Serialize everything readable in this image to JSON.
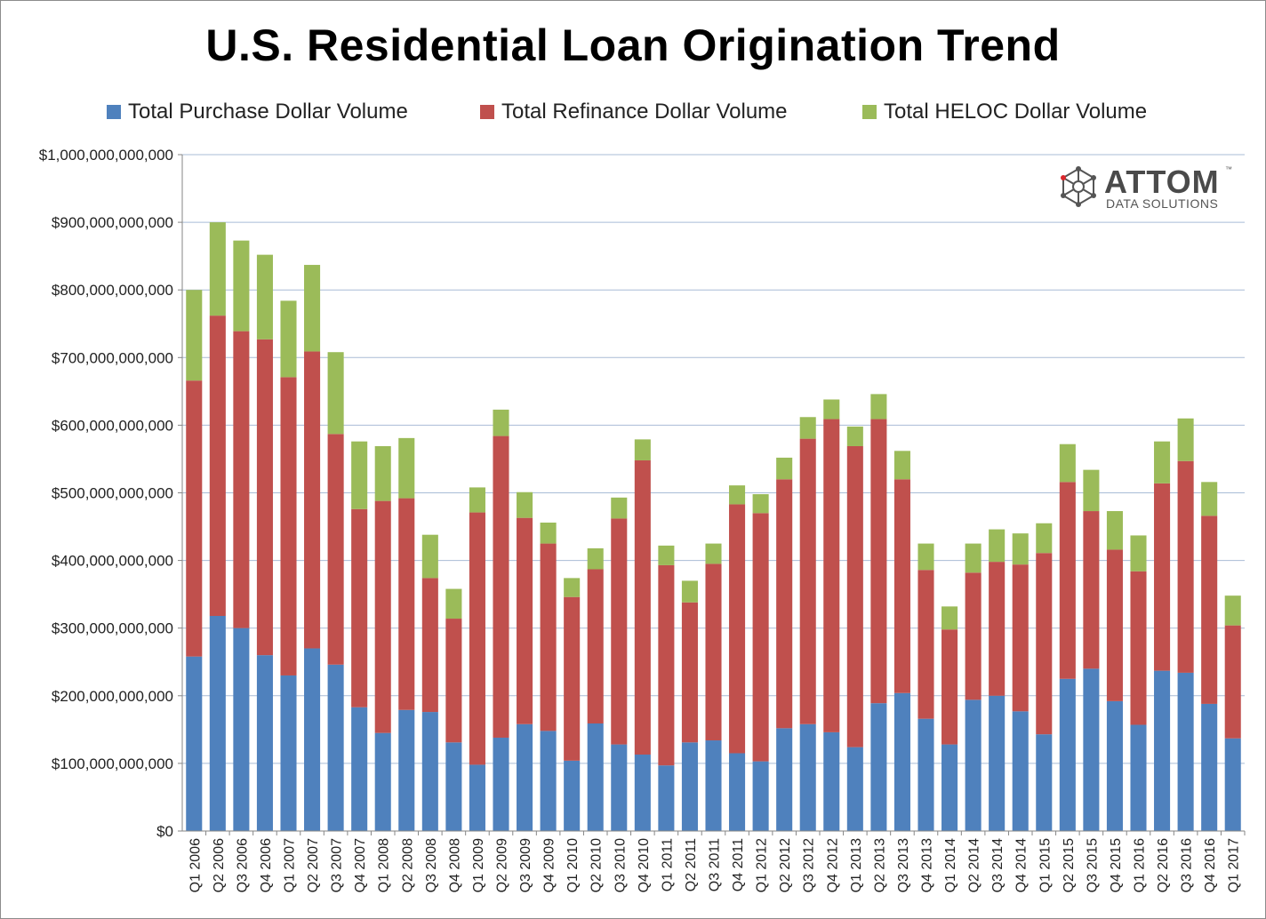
{
  "chart_data": {
    "type": "bar",
    "stacked": true,
    "title": "U.S. Residential Loan Origination Trend",
    "xlabel": "",
    "ylabel": "",
    "ylim": [
      0,
      1000000000000
    ],
    "yticks": [
      0,
      100000000000,
      200000000000,
      300000000000,
      400000000000,
      500000000000,
      600000000000,
      700000000000,
      800000000000,
      900000000000,
      1000000000000
    ],
    "ytick_labels": [
      "$0",
      "$100,000,000,000",
      "$200,000,000,000",
      "$300,000,000,000",
      "$400,000,000,000",
      "$500,000,000,000",
      "$600,000,000,000",
      "$700,000,000,000",
      "$800,000,000,000",
      "$900,000,000,000",
      "$1,000,000,000,000"
    ],
    "grid": true,
    "legend_position": "top",
    "categories": [
      "Q1 2006",
      "Q2 2006",
      "Q3 2006",
      "Q4 2006",
      "Q1 2007",
      "Q2 2007",
      "Q3 2007",
      "Q4 2007",
      "Q1 2008",
      "Q2 2008",
      "Q3 2008",
      "Q4 2008",
      "Q1 2009",
      "Q2 2009",
      "Q3 2009",
      "Q4 2009",
      "Q1 2010",
      "Q2 2010",
      "Q3 2010",
      "Q4 2010",
      "Q1 2011",
      "Q2 2011",
      "Q3 2011",
      "Q4 2011",
      "Q1 2012",
      "Q2 2012",
      "Q3 2012",
      "Q4 2012",
      "Q1 2013",
      "Q2 2013",
      "Q3 2013",
      "Q4 2013",
      "Q1 2014",
      "Q2 2014",
      "Q3 2014",
      "Q4 2014",
      "Q1 2015",
      "Q2 2015",
      "Q3 2015",
      "Q4 2015",
      "Q1 2016",
      "Q2 2016",
      "Q3 2016",
      "Q4 2016",
      "Q1 2017"
    ],
    "series": [
      {
        "name": "Total Purchase Dollar Volume",
        "color": "#4f81bd",
        "values": [
          258000000000,
          318000000000,
          300000000000,
          260000000000,
          230000000000,
          270000000000,
          246000000000,
          183000000000,
          145000000000,
          179000000000,
          176000000000,
          131000000000,
          98000000000,
          138000000000,
          158000000000,
          148000000000,
          104000000000,
          159000000000,
          128000000000,
          113000000000,
          97000000000,
          131000000000,
          134000000000,
          115000000000,
          103000000000,
          152000000000,
          158000000000,
          146000000000,
          124000000000,
          189000000000,
          204000000000,
          166000000000,
          128000000000,
          194000000000,
          200000000000,
          177000000000,
          143000000000,
          225000000000,
          240000000000,
          192000000000,
          157000000000,
          237000000000,
          234000000000,
          188000000000,
          137000000000
        ]
      },
      {
        "name": "Total Refinance Dollar Volume",
        "color": "#c0504d",
        "values": [
          408000000000,
          444000000000,
          439000000000,
          467000000000,
          441000000000,
          439000000000,
          341000000000,
          293000000000,
          343000000000,
          313000000000,
          198000000000,
          183000000000,
          373000000000,
          446000000000,
          305000000000,
          277000000000,
          242000000000,
          228000000000,
          334000000000,
          435000000000,
          296000000000,
          207000000000,
          261000000000,
          368000000000,
          367000000000,
          368000000000,
          422000000000,
          463000000000,
          445000000000,
          420000000000,
          316000000000,
          220000000000,
          170000000000,
          188000000000,
          198000000000,
          217000000000,
          268000000000,
          291000000000,
          233000000000,
          224000000000,
          227000000000,
          277000000000,
          313000000000,
          278000000000,
          167000000000
        ]
      },
      {
        "name": "Total HELOC Dollar Volume",
        "color": "#9bbb59",
        "values": [
          134000000000,
          138000000000,
          134000000000,
          125000000000,
          113000000000,
          128000000000,
          121000000000,
          100000000000,
          81000000000,
          89000000000,
          64000000000,
          44000000000,
          37000000000,
          39000000000,
          38000000000,
          31000000000,
          28000000000,
          31000000000,
          31000000000,
          31000000000,
          29000000000,
          32000000000,
          30000000000,
          28000000000,
          28000000000,
          32000000000,
          32000000000,
          29000000000,
          29000000000,
          37000000000,
          42000000000,
          39000000000,
          34000000000,
          43000000000,
          48000000000,
          46000000000,
          44000000000,
          56000000000,
          61000000000,
          57000000000,
          53000000000,
          62000000000,
          63000000000,
          50000000000,
          44000000000
        ]
      }
    ]
  },
  "logo": {
    "wordmark": "ATTOM",
    "subtitle": "DATA SOLUTIONS",
    "trademark": "™"
  }
}
